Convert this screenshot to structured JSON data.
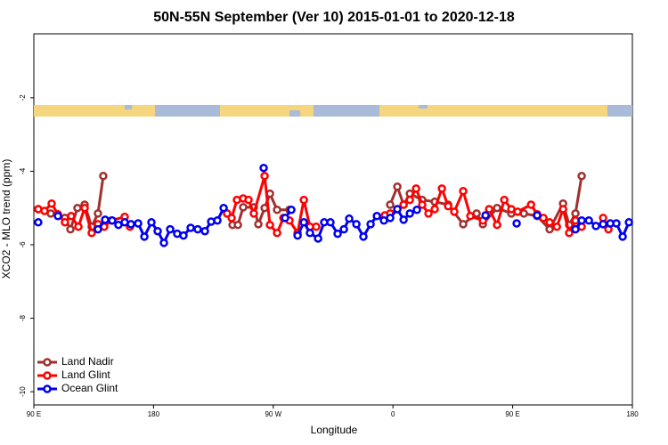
{
  "chart_data": {
    "type": "line",
    "title": "50N-55N September (Ver 10)   2015-01-01 to 2020-12-18",
    "x_label": "Longitude",
    "y_label": "XCO2 - MLO trend (ppm)",
    "xlim": [
      90,
      540
    ],
    "xticks": [
      {
        "value": 90,
        "label": "90 E"
      },
      {
        "value": 180,
        "label": "180"
      },
      {
        "value": 270,
        "label": "90 W"
      },
      {
        "value": 360,
        "label": "0"
      },
      {
        "value": 450,
        "label": "90 E"
      },
      {
        "value": 540,
        "label": "180"
      }
    ],
    "ylim": [
      -10.36,
      -0.26
    ],
    "yticks": [
      -10,
      -8,
      -6,
      -4,
      -2
    ],
    "legend": "bottom-left",
    "series": [
      {
        "name": "Land Nadir",
        "color": "#a0302e",
        "x": [
          93.3,
          102.7,
          113.4,
          117.5,
          122.8,
          128.2,
          133.5,
          138.2,
          142.2,
          null,
          235.3,
          239.4,
          243.4,
          247.4,
          255.4,
          258.8,
          263.5,
          267.5,
          272.9,
          282.2,
          null,
          357.9,
          363.3,
          368.0,
          372.7,
          382.0,
          391.4,
          401.5,
          412.8,
          422.9,
          427.6,
          438.3,
          449.0,
          458.4,
          468.4,
          477.8,
          487.9,
          492.5,
          497.2,
          501.9
        ],
        "values": [
          -5.03,
          -5.15,
          -5.27,
          -5.58,
          -5.0,
          -4.91,
          -5.51,
          -5.15,
          -4.13,
          null,
          -5.15,
          -5.46,
          -5.46,
          -4.98,
          -4.98,
          -5.44,
          -5.0,
          -4.61,
          -5.05,
          -5.05,
          null,
          -4.91,
          -4.42,
          -4.91,
          -4.61,
          -4.78,
          -4.83,
          -4.91,
          -5.44,
          -5.15,
          -5.44,
          -5.0,
          -5.15,
          -5.15,
          -5.22,
          -5.58,
          -4.88,
          -5.46,
          -5.15,
          -4.13
        ]
      },
      {
        "name": "Land Glint",
        "color": "#ff0000",
        "x": [
          93.3,
          98.0,
          103.4,
          108.1,
          113.4,
          118.1,
          123.5,
          128.2,
          133.5,
          138.2,
          142.9,
          148.3,
          158.3,
          162.3,
          null,
          235.3,
          238.7,
          242.7,
          247.4,
          251.4,
          255.4,
          263.5,
          267.5,
          272.9,
          277.6,
          282.2,
          288.3,
          293.0,
          297.6,
          302.3,
          null,
          353.9,
          357.9,
          363.3,
          368.0,
          372.7,
          377.4,
          382.0,
          386.7,
          391.4,
          396.8,
          401.5,
          406.1,
          412.8,
          418.2,
          427.6,
          432.3,
          438.3,
          443.7,
          449.0,
          453.7,
          463.8,
          468.4,
          473.1,
          477.8,
          483.2,
          487.9,
          492.5,
          497.2,
          501.9,
          null,
          518.0,
          522.0
        ],
        "values": [
          -5.03,
          -5.08,
          -4.88,
          -5.17,
          -5.39,
          -5.22,
          -5.51,
          -5.0,
          -5.68,
          -5.44,
          -5.51,
          -5.34,
          -5.24,
          -5.51,
          null,
          -5.15,
          -5.27,
          -4.78,
          -4.74,
          -4.78,
          -5.15,
          -4.13,
          -5.46,
          -5.68,
          -5.27,
          -5.34,
          -5.68,
          -4.78,
          -5.51,
          -5.51,
          null,
          -5.2,
          -5.15,
          -5.03,
          -4.91,
          -4.78,
          -4.47,
          -4.91,
          -5.15,
          -5.03,
          -4.47,
          -4.95,
          -5.1,
          -4.54,
          -5.22,
          -5.34,
          -5.03,
          -5.46,
          -4.78,
          -5.03,
          -5.1,
          -4.91,
          -5.17,
          -5.27,
          -5.39,
          -5.51,
          -5.03,
          -5.68,
          -5.34,
          -5.51,
          null,
          -5.27,
          -5.58
        ]
      },
      {
        "name": "Ocean Glint",
        "color": "#0000ee",
        "x": [
          93.3,
          null,
          108.1,
          null,
          138.2,
          143.6,
          148.9,
          153.6,
          158.3,
          163.0,
          168.4,
          173.1,
          178.4,
          183.1,
          187.8,
          192.5,
          197.8,
          202.5,
          207.9,
          213.2,
          218.6,
          223.3,
          228.0,
          232.7,
          null,
          262.8,
          null,
          278.9,
          283.6,
          null,
          288.3,
          293.0,
          297.6,
          303.7,
          308.3,
          313.0,
          318.4,
          323.1,
          327.1,
          332.5,
          337.8,
          343.2,
          347.9,
          353.2,
          357.9,
          363.3,
          368.0,
          372.7,
          378.0,
          null,
          429.6,
          null,
          453.0,
          null,
          468.4,
          null,
          497.2,
          501.9,
          507.3,
          512.6,
          518.0,
          523.4,
          528.0,
          532.7,
          537.4
        ],
        "values": [
          -5.39,
          null,
          -5.22,
          null,
          -5.58,
          -5.32,
          -5.34,
          -5.46,
          -5.39,
          -5.44,
          -5.42,
          -5.78,
          -5.39,
          -5.63,
          -5.95,
          -5.58,
          -5.7,
          -5.75,
          -5.54,
          -5.58,
          -5.63,
          -5.37,
          -5.34,
          -5.0,
          null,
          -3.91,
          null,
          -5.27,
          -5.05,
          null,
          -5.75,
          -5.39,
          -5.68,
          -5.83,
          -5.39,
          -5.39,
          -5.7,
          -5.58,
          -5.29,
          -5.44,
          -5.78,
          -5.44,
          -5.22,
          -5.34,
          -5.27,
          -5.03,
          -5.32,
          -5.15,
          -5.05,
          null,
          -5.2,
          null,
          -5.42,
          null,
          -5.2,
          null,
          -5.58,
          -5.34,
          -5.34,
          -5.49,
          -5.44,
          -5.42,
          -5.42,
          -5.78,
          -5.39
        ]
      }
    ]
  }
}
